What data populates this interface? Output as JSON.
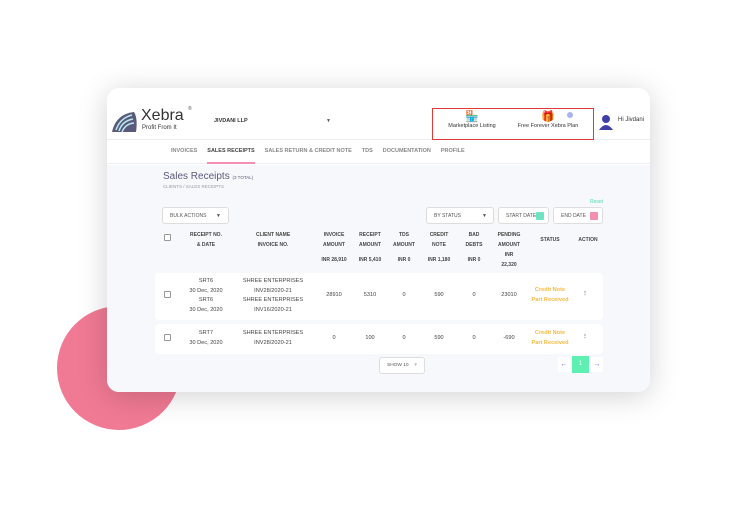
{
  "header": {
    "logo_name": "Xebra",
    "logo_tagline": "Profit From It",
    "company": "JIVDANI LLP",
    "marketplace_label": "Marketplace Listing",
    "plan_label": "Free Forever Xebra Plan",
    "greeting": "Hi Jivdani",
    "highlight_color": "#e53935"
  },
  "nav": {
    "tabs": [
      {
        "label": "INVOICES"
      },
      {
        "label": "SALES RECEIPTS",
        "active": true
      },
      {
        "label": "SALES RETURN & CREDIT NOTE"
      },
      {
        "label": "TDS"
      },
      {
        "label": "DOCUMENTATION"
      },
      {
        "label": "PROFILE"
      }
    ],
    "accent": "#f48fb1"
  },
  "page": {
    "title": "Sales Receipts",
    "count": "(3 TOTAL)",
    "breadcrumb": "CLIENTS / SALES RECEIPTS"
  },
  "filters": {
    "bulk_actions": "BULK ACTIONS",
    "by_status": "BY STATUS",
    "start_date": "START DATE",
    "end_date": "END DATE",
    "reset": "Reset"
  },
  "table": {
    "headers": [
      [
        "RECEIPT NO.",
        "& DATE"
      ],
      [
        "CLIENT NAME",
        "INVOICE NO."
      ],
      [
        "INVOICE",
        "AMOUNT"
      ],
      [
        "RECEIPT",
        "AMOUNT"
      ],
      [
        "TDS",
        "AMOUNT"
      ],
      [
        "CREDIT",
        "NOTE"
      ],
      [
        "BAD",
        "DEBTS"
      ],
      [
        "PENDING",
        "AMOUNT"
      ],
      [
        "STATUS"
      ],
      [
        "ACTION"
      ]
    ],
    "totals": [
      "INR 28,910",
      "INR 5,410",
      "INR 0",
      "INR 1,180",
      "INR 0",
      "INR",
      "22,320"
    ],
    "rows": [
      {
        "receipt": [
          "SRT6",
          "30 Dec, 2020",
          "SRT6",
          "30 Dec, 2020"
        ],
        "client": [
          "SHREE ENTERPRISES",
          "INV28/2020-21",
          "SHREE ENTERPRISES",
          "INV16/2020-21"
        ],
        "invoice_amount": "28910",
        "receipt_amount": "5310",
        "tds": "0",
        "credit_note": "590",
        "bad_debts": "0",
        "pending": "23010",
        "status": [
          "Credit Note",
          "Part Received"
        ]
      },
      {
        "receipt": [
          "SRT7",
          "30 Dec, 2020"
        ],
        "client": [
          "SHREE ENTERPRISES",
          "INV28/2020-21"
        ],
        "invoice_amount": "0",
        "receipt_amount": "100",
        "tds": "0",
        "credit_note": "590",
        "bad_debts": "0",
        "pending": "-690",
        "status": [
          "Credit Note",
          "Part Received"
        ]
      }
    ]
  },
  "pagination": {
    "show": "SHOW 10",
    "current_page": "1",
    "page_color": "#5ef0b0"
  }
}
